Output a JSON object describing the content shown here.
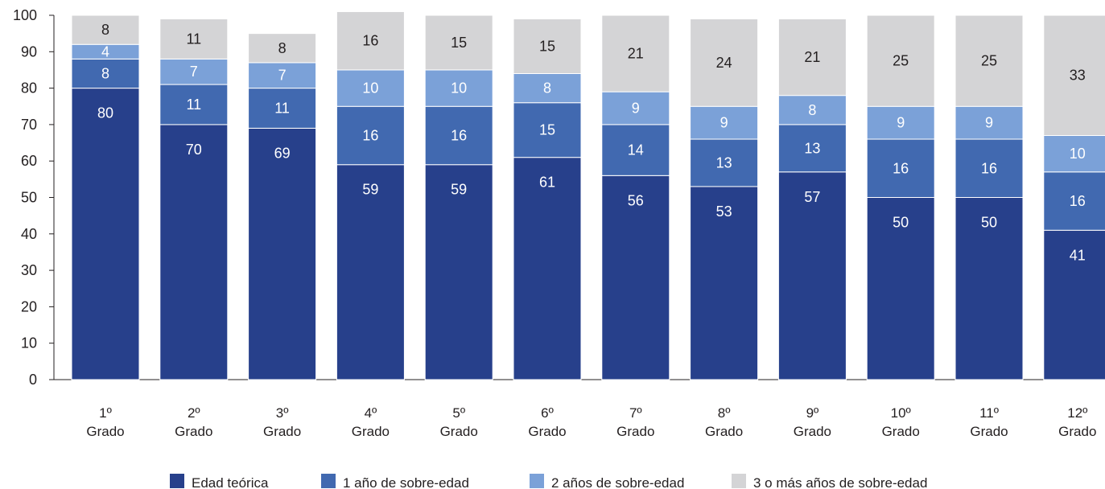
{
  "chart_data": {
    "type": "bar",
    "stacked": true,
    "categories": [
      "1º",
      "2º",
      "3º",
      "4º",
      "5º",
      "6º",
      "7º",
      "8º",
      "9º",
      "10º",
      "11º",
      "12º"
    ],
    "category_sublabel": "Grado",
    "ylim": [
      0,
      100
    ],
    "yticks": [
      0,
      10,
      20,
      30,
      40,
      50,
      60,
      70,
      80,
      90,
      100
    ],
    "grid": false,
    "legend_position": "bottom",
    "series": [
      {
        "name": "Edad teórica",
        "color": "#27408b",
        "label_color": "#ffffff",
        "values": [
          80,
          70,
          69,
          59,
          59,
          61,
          56,
          53,
          57,
          50,
          50,
          41
        ]
      },
      {
        "name": "1 año de sobre-edad",
        "color": "#4169b0",
        "label_color": "#ffffff",
        "values": [
          8,
          11,
          11,
          16,
          16,
          15,
          14,
          13,
          13,
          16,
          16,
          16
        ]
      },
      {
        "name": "2 años de sobre-edad",
        "color": "#7ba1d8",
        "label_color": "#ffffff",
        "values": [
          4,
          7,
          7,
          10,
          10,
          8,
          9,
          9,
          8,
          9,
          9,
          10
        ]
      },
      {
        "name": "3 o más años de sobre-edad",
        "color": "#d4d4d6",
        "label_color": "#231f20",
        "values": [
          8,
          11,
          8,
          16,
          15,
          15,
          21,
          24,
          21,
          25,
          25,
          33
        ]
      }
    ]
  }
}
